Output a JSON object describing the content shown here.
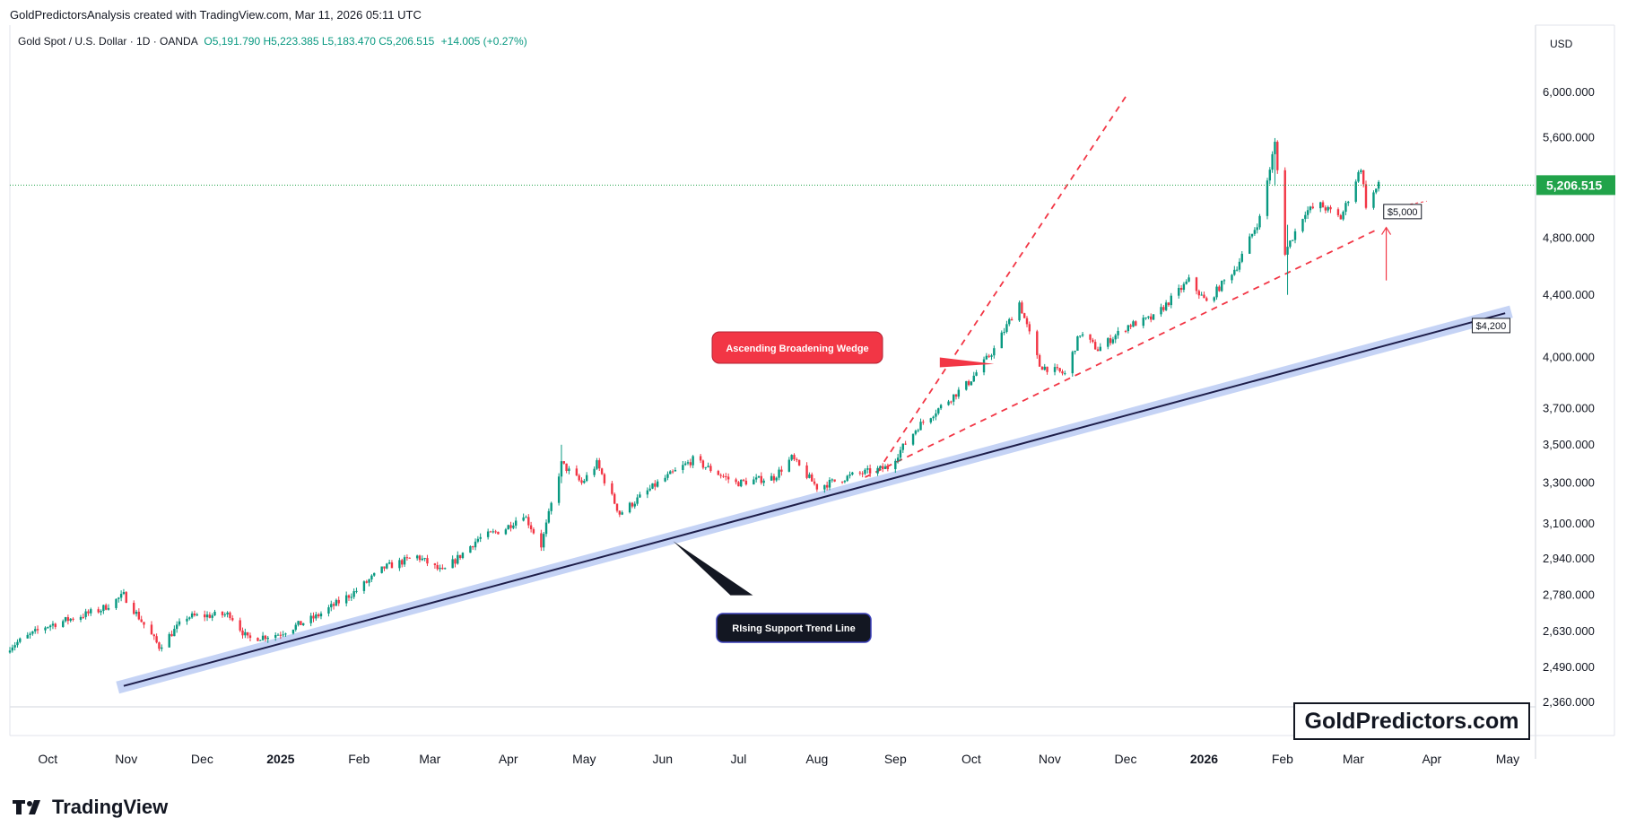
{
  "header": {
    "text": "GoldPredictorsAnalysis created with TradingView.com, Mar 11, 2026 05:11 UTC"
  },
  "legend": {
    "symbol": "Gold Spot / U.S. Dollar · 1D · OANDA",
    "ohlc": "O5,191.790  H5,223.385  L5,183.470  C5,206.515",
    "change": "+14.005 (+0.27%)"
  },
  "currency": "USD",
  "footer": {
    "brand": "TradingView"
  },
  "watermark": "GoldPredictors.com",
  "colors": {
    "up": "#089981",
    "down": "#f23645",
    "support": "#1e1e4a",
    "support_band": "#c5d3f5",
    "wedge": "#f23645",
    "last_price": "#21a34a"
  },
  "chart_data": {
    "type": "candlestick",
    "title": "Gold Spot / U.S. Dollar · 1D · OANDA",
    "y_scale": "log",
    "ylim": [
      2300,
      6400
    ],
    "y_ticks": [
      "6,000.000",
      "5,600.000",
      "4,800.000",
      "4,400.000",
      "4,000.000",
      "3,700.000",
      "3,500.000",
      "3,300.000",
      "3,100.000",
      "2,940.000",
      "2,780.000",
      "2,630.000",
      "2,490.000",
      "2,360.000"
    ],
    "y_tick_values": [
      6000,
      5600,
      4800,
      4400,
      4000,
      3700,
      3500,
      3300,
      3100,
      2940,
      2780,
      2630,
      2490,
      2360
    ],
    "x_ticks": [
      "Oct",
      "Nov",
      "Dec",
      "2025",
      "Feb",
      "Mar",
      "Apr",
      "May",
      "Jun",
      "Jul",
      "Aug",
      "Sep",
      "Oct",
      "Nov",
      "Dec",
      "2026",
      "Feb",
      "Mar",
      "Apr",
      "May"
    ],
    "x_tick_dates": [
      "2024-10-01",
      "2024-11-01",
      "2024-12-01",
      "2025-01-01",
      "2025-02-01",
      "2025-03-01",
      "2025-04-01",
      "2025-05-01",
      "2025-06-01",
      "2025-07-01",
      "2025-08-01",
      "2025-09-01",
      "2025-10-01",
      "2025-11-01",
      "2025-12-01",
      "2026-01-01",
      "2026-02-01",
      "2026-03-01",
      "2026-04-01",
      "2026-05-01"
    ],
    "x_range": [
      "2024-09-16",
      "2026-05-12"
    ],
    "last_price": {
      "value": 5206.515,
      "label": "5,206.515"
    },
    "close_path": [
      [
        "2024-09-16",
        2570
      ],
      [
        "2024-09-30",
        2650
      ],
      [
        "2024-10-22",
        2720
      ],
      [
        "2024-10-31",
        2780
      ],
      [
        "2024-11-14",
        2570
      ],
      [
        "2024-11-25",
        2690
      ],
      [
        "2024-12-12",
        2700
      ],
      [
        "2024-12-19",
        2600
      ],
      [
        "2024-12-31",
        2620
      ],
      [
        "2025-01-15",
        2690
      ],
      [
        "2025-01-31",
        2800
      ],
      [
        "2025-02-11",
        2900
      ],
      [
        "2025-02-24",
        2950
      ],
      [
        "2025-03-06",
        2880
      ],
      [
        "2025-03-20",
        3030
      ],
      [
        "2025-03-31",
        3080
      ],
      [
        "2025-04-07",
        3150
      ],
      [
        "2025-04-14",
        3000
      ],
      [
        "2025-04-22",
        3400
      ],
      [
        "2025-04-30",
        3300
      ],
      [
        "2025-05-06",
        3400
      ],
      [
        "2025-05-15",
        3150
      ],
      [
        "2025-05-30",
        3300
      ],
      [
        "2025-06-13",
        3420
      ],
      [
        "2025-06-30",
        3300
      ],
      [
        "2025-07-15",
        3330
      ],
      [
        "2025-07-22",
        3430
      ],
      [
        "2025-08-01",
        3280
      ],
      [
        "2025-08-15",
        3340
      ],
      [
        "2025-08-29",
        3380
      ],
      [
        "2025-09-10",
        3600
      ],
      [
        "2025-09-30",
        3850
      ],
      [
        "2025-10-10",
        4050
      ],
      [
        "2025-10-20",
        4350
      ],
      [
        "2025-10-28",
        3950
      ],
      [
        "2025-11-07",
        3900
      ],
      [
        "2025-11-13",
        4150
      ],
      [
        "2025-11-20",
        4050
      ],
      [
        "2025-12-02",
        4200
      ],
      [
        "2025-12-12",
        4250
      ],
      [
        "2025-12-26",
        4500
      ],
      [
        "2026-01-02",
        4350
      ],
      [
        "2026-01-14",
        4600
      ],
      [
        "2026-01-23",
        4950
      ],
      [
        "2026-01-29",
        5550
      ],
      [
        "2026-02-02",
        4700
      ],
      [
        "2026-02-10",
        5000
      ],
      [
        "2026-02-16",
        5050
      ],
      [
        "2026-02-24",
        4950
      ],
      [
        "2026-03-01",
        5200
      ],
      [
        "2026-03-04",
        5350
      ],
      [
        "2026-03-06",
        5050
      ],
      [
        "2026-03-11",
        5206
      ]
    ],
    "spikes": [
      {
        "date": "2025-04-22",
        "high": 3500,
        "low": 3300
      },
      {
        "date": "2026-01-29",
        "high": 5595,
        "low": 5200
      },
      {
        "date": "2026-02-03",
        "high": 4900,
        "low": 4402
      }
    ],
    "annotations": [
      {
        "text": "Ascending Broadening Wedge",
        "style": "red-callout"
      },
      {
        "text": "RIsing Support Trend Line",
        "style": "dark-callout"
      },
      {
        "text": "$5,000",
        "value": 5000,
        "style": "price-label"
      },
      {
        "text": "$4,200",
        "value": 4200,
        "style": "price-label"
      }
    ],
    "support_line": {
      "from": [
        "2024-10-31",
        2420
      ],
      "to": [
        "2026-04-30",
        4280
      ]
    },
    "wedge_upper": {
      "from": [
        "2025-08-25",
        3360
      ],
      "to": [
        "2025-12-01",
        5960
      ]
    },
    "wedge_lower": {
      "from": [
        "2025-08-20",
        3330
      ],
      "to": [
        "2026-03-11",
        4870
      ]
    },
    "arrow": {
      "from": [
        "2026-03-14",
        4500
      ],
      "to": [
        "2026-03-14",
        4880
      ]
    }
  }
}
